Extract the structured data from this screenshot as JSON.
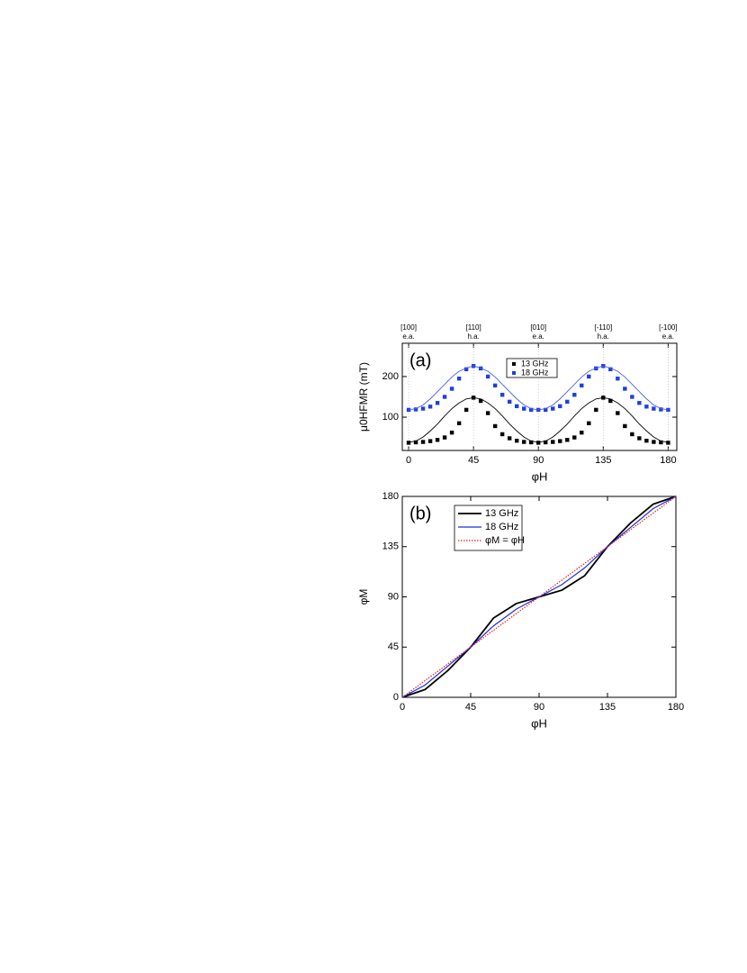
{
  "chart_data": [
    {
      "type": "scatter",
      "panel_label": "(a)",
      "x_label": "φH",
      "y_label": "μ0HFMR (mT)",
      "x": [
        0,
        5,
        10,
        15,
        20,
        25,
        30,
        35,
        40,
        45,
        50,
        55,
        60,
        65,
        70,
        75,
        80,
        85,
        90,
        95,
        100,
        105,
        110,
        115,
        120,
        125,
        130,
        135,
        140,
        145,
        150,
        155,
        160,
        165,
        170,
        175,
        180
      ],
      "series": [
        {
          "name": "13 GHz",
          "color": "#000000",
          "style": "markers",
          "values": [
            37,
            38,
            39,
            41,
            44,
            50,
            62,
            85,
            118,
            148,
            140,
            110,
            78,
            58,
            48,
            42,
            39,
            38,
            37,
            38,
            39,
            41,
            44,
            50,
            62,
            85,
            118,
            148,
            140,
            110,
            78,
            58,
            48,
            42,
            39,
            38,
            37
          ]
        },
        {
          "name": "18 GHz",
          "color": "#1f3fe0",
          "style": "markers",
          "values": [
            118,
            119,
            121,
            126,
            135,
            150,
            170,
            195,
            218,
            226,
            220,
            200,
            178,
            155,
            138,
            127,
            121,
            118,
            118,
            118,
            121,
            127,
            138,
            155,
            178,
            200,
            220,
            226,
            218,
            195,
            170,
            150,
            135,
            126,
            121,
            119,
            118
          ]
        },
        {
          "color": "#000000",
          "style": "line",
          "values": [
            38,
            41,
            51,
            66,
            83,
            103,
            121,
            135,
            145,
            148,
            145,
            135,
            121,
            103,
            83,
            66,
            51,
            41,
            38,
            41,
            51,
            66,
            83,
            103,
            121,
            135,
            145,
            148,
            145,
            135,
            121,
            103,
            83,
            66,
            51,
            41,
            38
          ]
        },
        {
          "color": "#4a5ee8",
          "style": "line",
          "values": [
            118,
            121,
            130,
            145,
            163,
            181,
            199,
            213,
            221,
            226,
            221,
            213,
            199,
            181,
            163,
            145,
            130,
            121,
            118,
            121,
            130,
            145,
            163,
            181,
            199,
            213,
            221,
            226,
            221,
            213,
            199,
            181,
            163,
            145,
            130,
            121,
            118
          ]
        }
      ],
      "top_labels": [
        {
          "x": 0,
          "text": "[100]",
          "note": "e.a."
        },
        {
          "x": 45,
          "text": "[110]",
          "note": "h.a."
        },
        {
          "x": 90,
          "text": "[010]",
          "note": "e.a."
        },
        {
          "x": 135,
          "text": "[-110]",
          "note": "h.a."
        },
        {
          "x": 180,
          "text": "[-100]",
          "note": "e.a."
        }
      ],
      "xlim": [
        -4.4,
        186
      ],
      "ylim": [
        18,
        282
      ],
      "xticks": [
        0,
        45,
        90,
        135,
        180
      ],
      "yticks": [
        100,
        200
      ],
      "grid": "x-dotted"
    },
    {
      "type": "line",
      "panel_label": "(b)",
      "x_label": "φH",
      "y_label": "φM",
      "x": [
        0,
        15,
        30,
        45,
        60,
        75,
        90,
        105,
        120,
        135,
        150,
        165,
        180
      ],
      "series": [
        {
          "name": "13 GHz",
          "color": "#000000",
          "style": "line",
          "values": [
            0,
            7,
            24,
            45,
            71,
            84,
            90,
            96,
            109,
            135,
            156,
            173,
            180
          ]
        },
        {
          "name": "18 GHz",
          "color": "#1f2fd8",
          "style": "line",
          "values": [
            0,
            11,
            28,
            45,
            64,
            79,
            90,
            101,
            116,
            135,
            152,
            169,
            180
          ]
        },
        {
          "name": "φM = φH",
          "color": "#e02020",
          "style": "dotted",
          "values": [
            0,
            15,
            30,
            45,
            60,
            75,
            90,
            105,
            120,
            135,
            150,
            165,
            180
          ]
        }
      ],
      "xlim": [
        0,
        180
      ],
      "ylim": [
        0,
        180
      ],
      "xticks": [
        0,
        45,
        90,
        135,
        180
      ],
      "yticks": [
        0,
        45,
        90,
        135,
        180
      ],
      "grid": "none"
    }
  ]
}
